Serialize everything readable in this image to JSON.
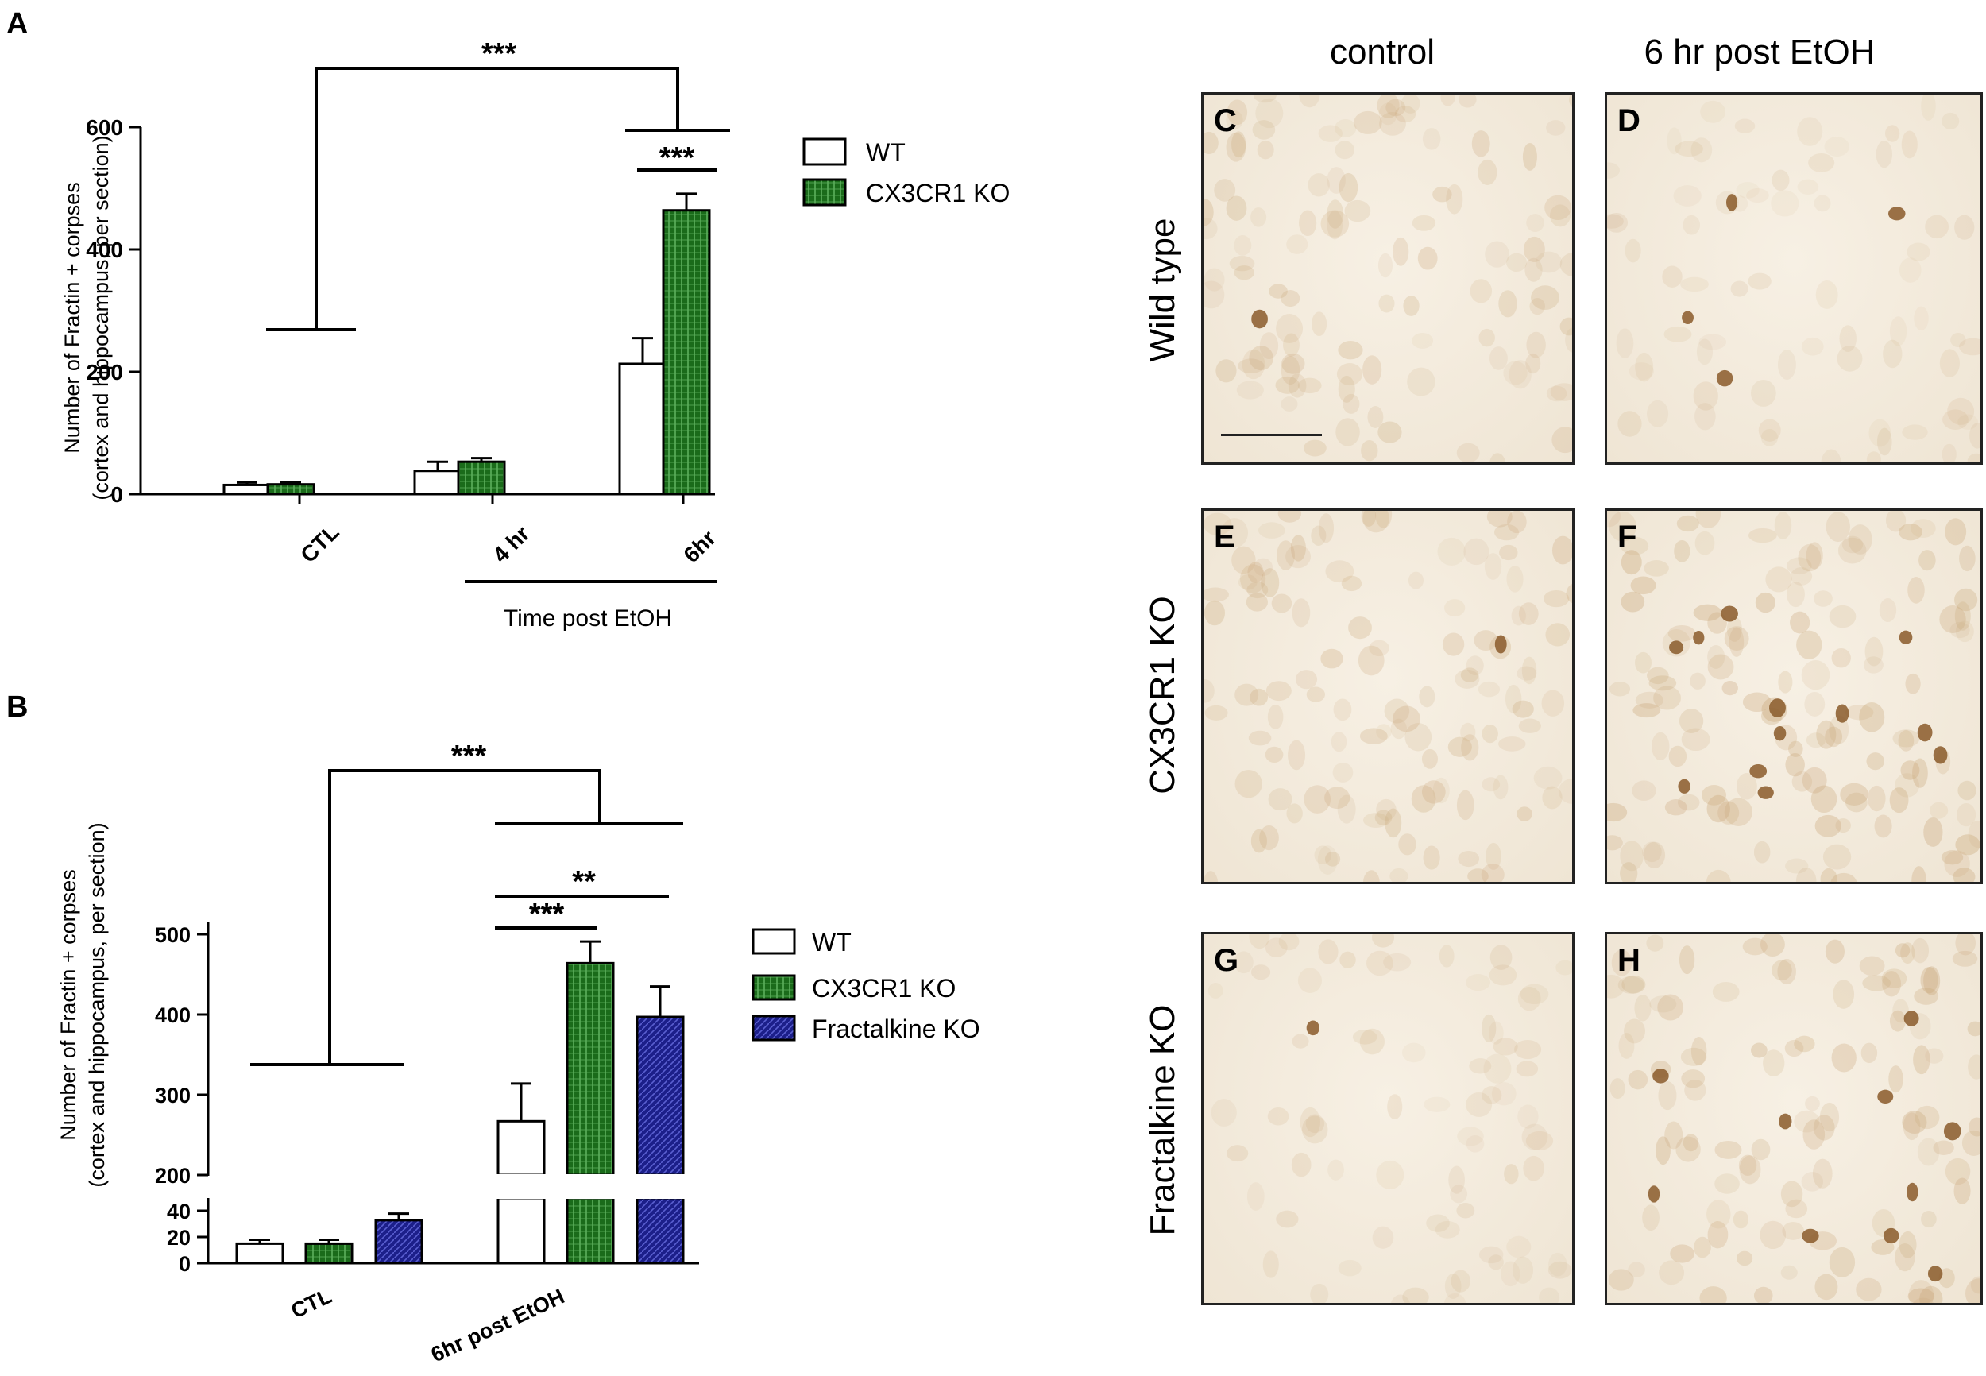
{
  "colors": {
    "wt": "#ffffff",
    "cx3cr1": "#1a6b1a",
    "fractalkine": "#1c1f8a",
    "stroke": "#000000",
    "tissue": "#efe5d4",
    "stain": "#b08a5a",
    "dark_stain": "#8a5a2a"
  },
  "panel_labels": {
    "a": "A",
    "b": "B"
  },
  "chart_data": [
    {
      "type": "bar",
      "panel": "A",
      "ylabel_line1": "Number of Fractin + corpses",
      "ylabel_line2": "(cortex and hippocampus, per section)",
      "xlabel": "Time post EtOH",
      "categories": [
        "CTL",
        "4 hr",
        "6hr"
      ],
      "ylim": [
        0,
        600
      ],
      "yticks": [
        "0",
        "200",
        "400",
        "600"
      ],
      "series": [
        {
          "name": "WT",
          "values": [
            15,
            38,
            213
          ],
          "errors": [
            4,
            15,
            42
          ]
        },
        {
          "name": "CX3CR1 KO",
          "values": [
            16,
            53,
            464
          ],
          "errors": [
            3,
            6,
            27
          ]
        }
      ],
      "significance": [
        "***",
        "***"
      ],
      "legend": [
        "WT",
        "CX3CR1 KO"
      ],
      "legend_position": "right"
    },
    {
      "type": "bar",
      "panel": "B",
      "ylabel_line1": "Number of Fractin + corpses",
      "ylabel_line2": "(cortex and hippocampus, per section)",
      "categories": [
        "CTL",
        "6hr post EtOH"
      ],
      "axis_break": true,
      "ylim_low": [
        0,
        50
      ],
      "ylim_high": [
        200,
        500
      ],
      "yticks_high": [
        "200",
        "300",
        "400",
        "500"
      ],
      "yticks_low": [
        "0",
        "20",
        "40"
      ],
      "series": [
        {
          "name": "WT",
          "values": [
            15,
            267
          ],
          "errors": [
            3,
            47
          ]
        },
        {
          "name": "CX3CR1 KO",
          "values": [
            15,
            464
          ],
          "errors": [
            3,
            27
          ]
        },
        {
          "name": "Fractalkine KO",
          "values": [
            33,
            397
          ],
          "errors": [
            5,
            38
          ]
        }
      ],
      "significance": [
        "***",
        "**",
        "***"
      ],
      "legend": [
        "WT",
        "CX3CR1 KO",
        "Fractalkine KO"
      ],
      "legend_position": "right"
    }
  ],
  "micrographs": {
    "col_headers": [
      "control",
      "6 hr post EtOH"
    ],
    "row_labels": [
      "Wild type",
      "CX3CR1 KO",
      "Fractalkine KO"
    ],
    "panels": [
      "C",
      "D",
      "E",
      "F",
      "G",
      "H"
    ]
  }
}
